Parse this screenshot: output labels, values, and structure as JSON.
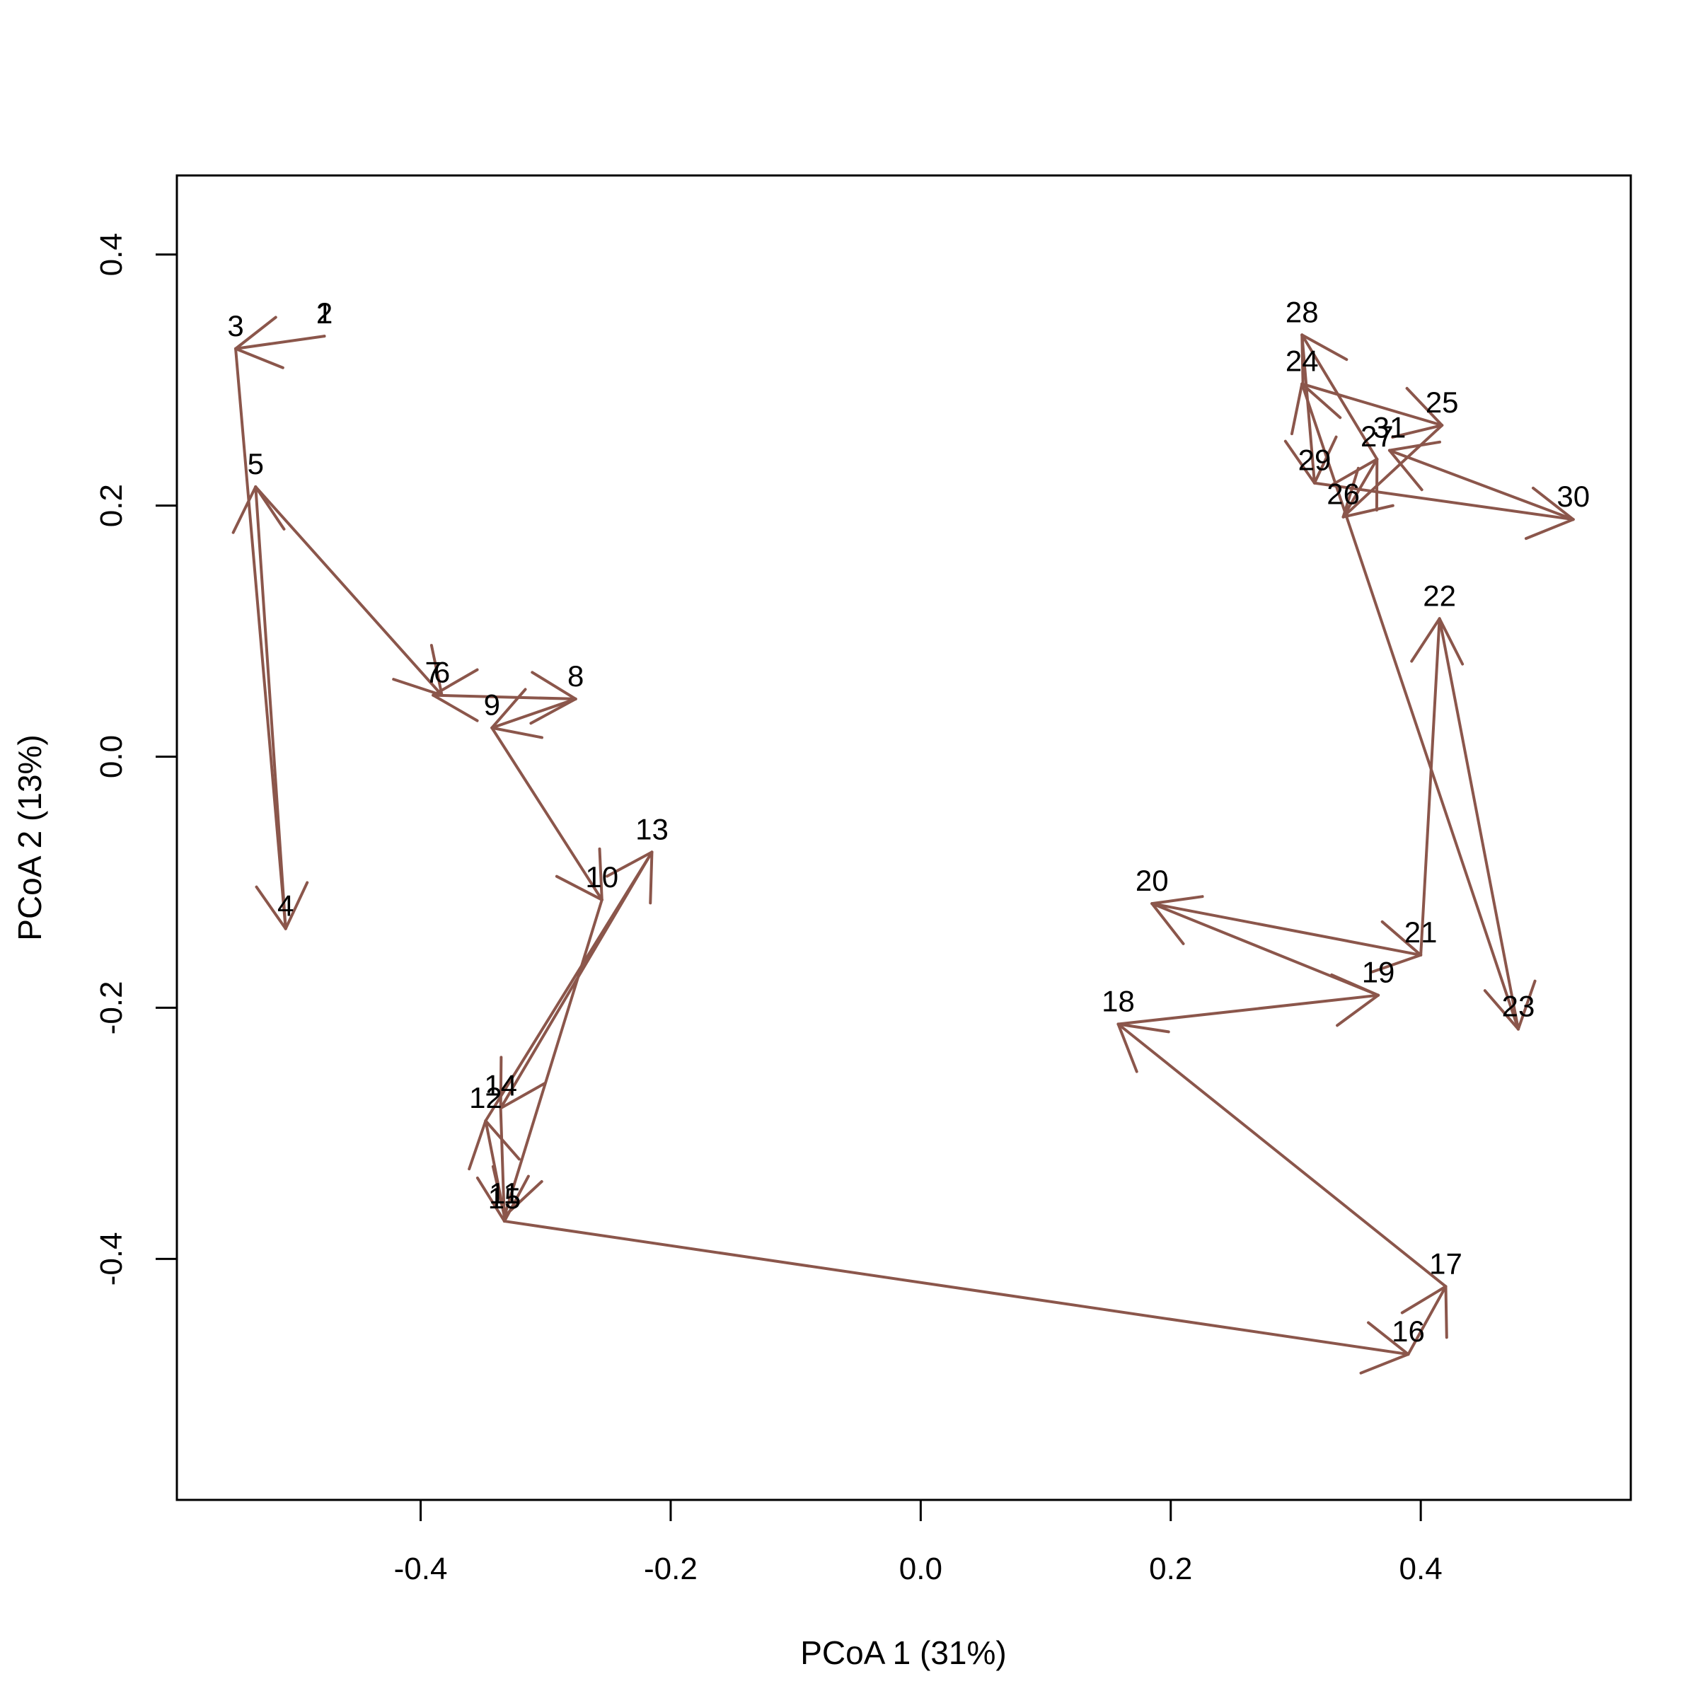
{
  "chart_data": {
    "type": "scatter",
    "title": "",
    "xlabel": "PCoA 1 (31%)",
    "ylabel": "PCoA 2 (13%)",
    "xlim": [
      -0.595,
      0.568
    ],
    "ylim": [
      -0.592,
      0.463
    ],
    "x_ticks": [
      "-0.4",
      "-0.2",
      "0.0",
      "0.2",
      "0.4"
    ],
    "y_ticks": [
      "-0.4",
      "-0.2",
      "0.0",
      "0.2",
      "0.4"
    ],
    "grid": false,
    "legend": "none",
    "arrow_color": "#8B564B",
    "points": [
      {
        "label": "1",
        "x": -0.477,
        "y": 0.335
      },
      {
        "label": "2",
        "x": -0.477,
        "y": 0.335
      },
      {
        "label": "3",
        "x": -0.548,
        "y": 0.325
      },
      {
        "label": "4",
        "x": -0.508,
        "y": -0.137
      },
      {
        "label": "5",
        "x": -0.532,
        "y": 0.215
      },
      {
        "label": "6",
        "x": -0.383,
        "y": 0.049
      },
      {
        "label": "7",
        "x": -0.39,
        "y": 0.049
      },
      {
        "label": "8",
        "x": -0.276,
        "y": 0.046
      },
      {
        "label": "9",
        "x": -0.343,
        "y": 0.023
      },
      {
        "label": "10",
        "x": -0.255,
        "y": -0.114
      },
      {
        "label": "11",
        "x": -0.333,
        "y": -0.366
      },
      {
        "label": "12",
        "x": -0.348,
        "y": -0.29
      },
      {
        "label": "13",
        "x": -0.215,
        "y": -0.076
      },
      {
        "label": "14",
        "x": -0.336,
        "y": -0.28
      },
      {
        "label": "15",
        "x": -0.333,
        "y": -0.37
      },
      {
        "label": "16",
        "x": 0.39,
        "y": -0.476
      },
      {
        "label": "17",
        "x": 0.42,
        "y": -0.422
      },
      {
        "label": "18",
        "x": 0.158,
        "y": -0.213
      },
      {
        "label": "19",
        "x": 0.366,
        "y": -0.19
      },
      {
        "label": "20",
        "x": 0.185,
        "y": -0.117
      },
      {
        "label": "21",
        "x": 0.4,
        "y": -0.158
      },
      {
        "label": "22",
        "x": 0.415,
        "y": 0.11
      },
      {
        "label": "23",
        "x": 0.478,
        "y": -0.217
      },
      {
        "label": "24",
        "x": 0.305,
        "y": 0.297
      },
      {
        "label": "25",
        "x": 0.417,
        "y": 0.264
      },
      {
        "label": "26",
        "x": 0.338,
        "y": 0.191
      },
      {
        "label": "27",
        "x": 0.365,
        "y": 0.237
      },
      {
        "label": "28",
        "x": 0.305,
        "y": 0.336
      },
      {
        "label": "29",
        "x": 0.315,
        "y": 0.218
      },
      {
        "label": "30",
        "x": 0.522,
        "y": 0.189
      },
      {
        "label": "31",
        "x": 0.375,
        "y": 0.244
      }
    ]
  }
}
